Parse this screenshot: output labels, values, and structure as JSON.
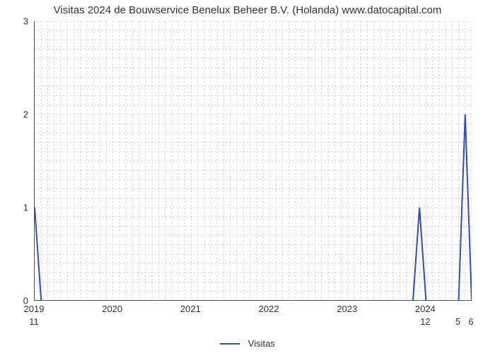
{
  "chart": {
    "type": "line",
    "title": "Visitas 2024 de Bouwservice Benelux Beheer B.V. (Holanda) www.datocapital.com",
    "title_fontsize": 15,
    "title_color": "#333333",
    "background_color": "#ffffff",
    "plot_border_color": "#4d4d4d",
    "grid": {
      "color": "#cccccc",
      "width": 1,
      "dash": "2,3"
    },
    "x_axis": {
      "min": 0,
      "max": 67,
      "major_tick_positions": [
        0,
        12,
        24,
        36,
        48,
        60
      ],
      "major_tick_labels": [
        "2019",
        "2020",
        "2021",
        "2022",
        "2023",
        "2024"
      ],
      "minor_tick_count_between": 11,
      "label_fontsize": 13,
      "label_color": "#333333"
    },
    "y_axis": {
      "min": 0,
      "max": 3,
      "tick_positions": [
        0,
        1,
        2,
        3
      ],
      "tick_labels": [
        "0",
        "1",
        "2",
        "3"
      ],
      "minor_tick_count_between": 9,
      "label_fontsize": 13,
      "label_color": "#333333"
    },
    "secondary_labels": [
      {
        "x": 0,
        "text": "11"
      },
      {
        "x": 60,
        "text": "12"
      },
      {
        "x": 65,
        "text": "5"
      },
      {
        "x": 67,
        "text": "6"
      }
    ],
    "series": {
      "name": "Visitas",
      "color": "#304dbf",
      "line_width": 2,
      "points": [
        {
          "x": 0,
          "y": 1.0
        },
        {
          "x": 1,
          "y": 0.0
        },
        {
          "x": 58,
          "y": 0.0
        },
        {
          "x": 59,
          "y": 1.0
        },
        {
          "x": 60,
          "y": 0.0
        },
        {
          "x": 65,
          "y": 0.0
        },
        {
          "x": 66,
          "y": 2.0
        },
        {
          "x": 67,
          "y": 0.0
        }
      ]
    },
    "legend": {
      "label": "Visitas",
      "line_color": "#304dbf",
      "fontsize": 13
    }
  }
}
